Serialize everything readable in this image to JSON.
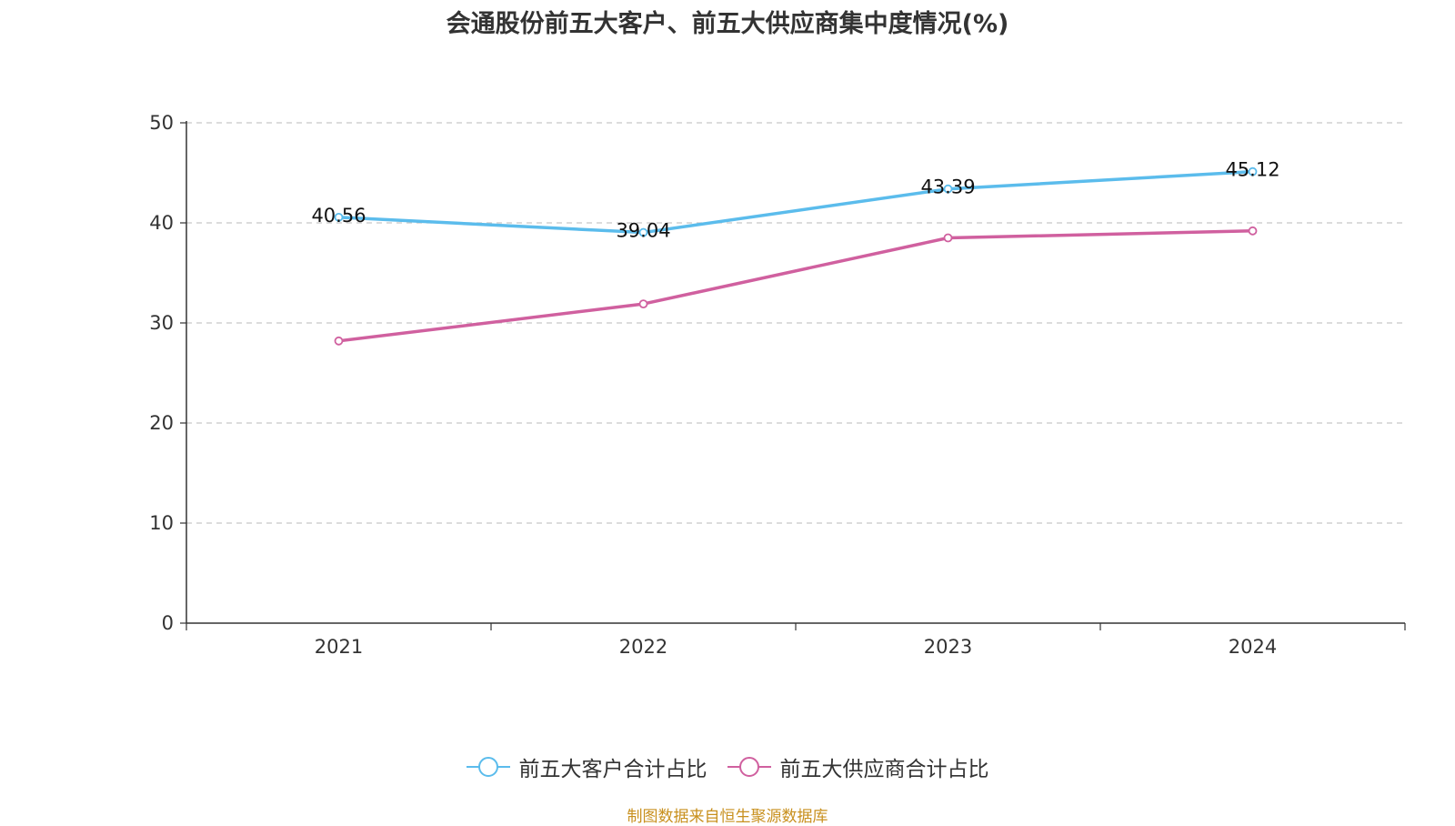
{
  "chart_data": {
    "type": "line",
    "title": "会通股份前五大客户、前五大供应商集中度情况(%)",
    "categories": [
      "2021",
      "2022",
      "2023",
      "2024"
    ],
    "ylim": [
      0,
      50
    ],
    "yticks": [
      0,
      10,
      20,
      30,
      40,
      50
    ],
    "grid": true,
    "legend_position": "bottom",
    "series": [
      {
        "name": "前五大客户合计占比",
        "color": "#5bbcec",
        "values": [
          40.56,
          39.04,
          43.39,
          45.12
        ],
        "labels": [
          "40.56",
          "39.04",
          "43.39",
          "45.12"
        ]
      },
      {
        "name": "前五大供应商合计占比",
        "color": "#d0609f",
        "values": [
          28.2,
          31.9,
          38.5,
          39.2
        ],
        "labels": [
          "",
          "",
          "",
          ""
        ]
      }
    ]
  },
  "source": "制图数据来自恒生聚源数据库"
}
